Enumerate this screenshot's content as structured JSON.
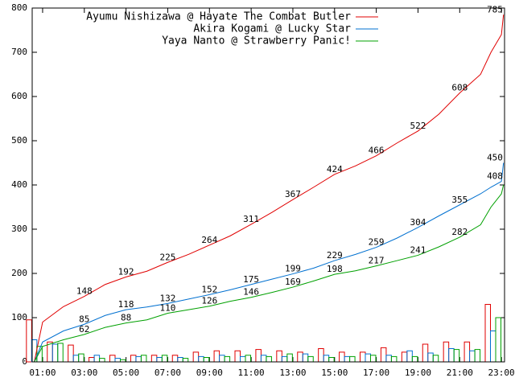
{
  "chart_data": {
    "type": "line",
    "x": [
      0.6,
      1,
      2,
      3,
      4,
      5,
      6,
      7,
      8,
      9,
      10,
      11,
      12,
      13,
      14,
      15,
      16,
      17,
      18,
      19,
      20,
      21,
      22,
      22.5,
      23,
      23.1
    ],
    "series": [
      {
        "name": "Ayumu Nishizawa @ Hayate The Combat Butler",
        "color": "#e00000",
        "values": [
          0,
          90,
          125,
          148,
          175,
          192,
          205,
          225,
          243,
          264,
          285,
          311,
          338,
          367,
          395,
          424,
          443,
          466,
          495,
          522,
          560,
          608,
          650,
          700,
          740,
          785
        ],
        "value_labels": [
          null,
          null,
          null,
          "148",
          null,
          "192",
          null,
          "225",
          null,
          "264",
          null,
          "311",
          null,
          "367",
          null,
          "424",
          null,
          "466",
          null,
          "522",
          null,
          "608",
          null,
          null,
          null,
          "785"
        ],
        "bars": [
          95,
          45,
          38,
          10,
          15,
          15,
          15,
          15,
          22,
          25,
          25,
          28,
          25,
          22,
          30,
          22,
          22,
          32,
          22,
          40,
          45,
          45,
          130
        ]
      },
      {
        "name": "Akira Kogami @ Lucky Star",
        "color": "#0070d0",
        "values": [
          0,
          45,
          70,
          85,
          105,
          118,
          124,
          132,
          142,
          152,
          163,
          175,
          187,
          199,
          212,
          229,
          243,
          259,
          280,
          304,
          330,
          355,
          380,
          395,
          408,
          450
        ],
        "value_labels": [
          null,
          null,
          null,
          "85",
          null,
          "118",
          null,
          "132",
          null,
          "152",
          null,
          "175",
          null,
          "199",
          null,
          "229",
          null,
          "259",
          null,
          "304",
          null,
          "355",
          null,
          null,
          "408",
          "450"
        ],
        "bars": [
          50,
          40,
          15,
          15,
          8,
          12,
          10,
          10,
          12,
          15,
          12,
          15,
          12,
          18,
          15,
          12,
          18,
          15,
          25,
          20,
          30,
          25,
          70
        ]
      },
      {
        "name": "Yaya Nanto @ Strawberry Panic!",
        "color": "#00a000",
        "values": [
          0,
          35,
          50,
          62,
          78,
          88,
          95,
          110,
          118,
          126,
          137,
          146,
          157,
          169,
          183,
          198,
          206,
          217,
          229,
          241,
          260,
          282,
          310,
          350,
          380,
          400
        ],
        "value_labels": [
          null,
          null,
          null,
          "62",
          null,
          "88",
          null,
          "110",
          null,
          "126",
          null,
          "146",
          null,
          "169",
          null,
          "198",
          null,
          "217",
          null,
          "241",
          null,
          "282",
          null,
          null,
          null,
          null
        ],
        "bars": [
          35,
          42,
          18,
          8,
          5,
          15,
          15,
          8,
          10,
          12,
          15,
          12,
          18,
          12,
          10,
          12,
          15,
          12,
          12,
          15,
          28,
          28,
          100
        ]
      }
    ],
    "bar_x": [
      0.6,
      1.6,
      2.6,
      3.6,
      4.6,
      5.6,
      6.6,
      7.6,
      8.6,
      9.6,
      10.6,
      11.6,
      12.6,
      13.6,
      14.6,
      15.6,
      16.6,
      17.6,
      18.6,
      19.6,
      20.6,
      21.6,
      22.6
    ],
    "xlim": [
      0.5,
      23.15
    ],
    "xticks": [
      {
        "value": 1,
        "label": "01:00"
      },
      {
        "value": 3,
        "label": "03:00"
      },
      {
        "value": 5,
        "label": "05:00"
      },
      {
        "value": 7,
        "label": "07:00"
      },
      {
        "value": 9,
        "label": "09:00"
      },
      {
        "value": 11,
        "label": "11:00"
      },
      {
        "value": 13,
        "label": "13:00"
      },
      {
        "value": 15,
        "label": "15:00"
      },
      {
        "value": 17,
        "label": "17:00"
      },
      {
        "value": 19,
        "label": "19:00"
      },
      {
        "value": 21,
        "label": "21:00"
      },
      {
        "value": 23,
        "label": "23:00"
      }
    ],
    "ylim": [
      0,
      800
    ],
    "yticks": [
      0,
      100,
      200,
      300,
      400,
      500,
      600,
      700,
      800
    ],
    "legend": "top-right"
  }
}
